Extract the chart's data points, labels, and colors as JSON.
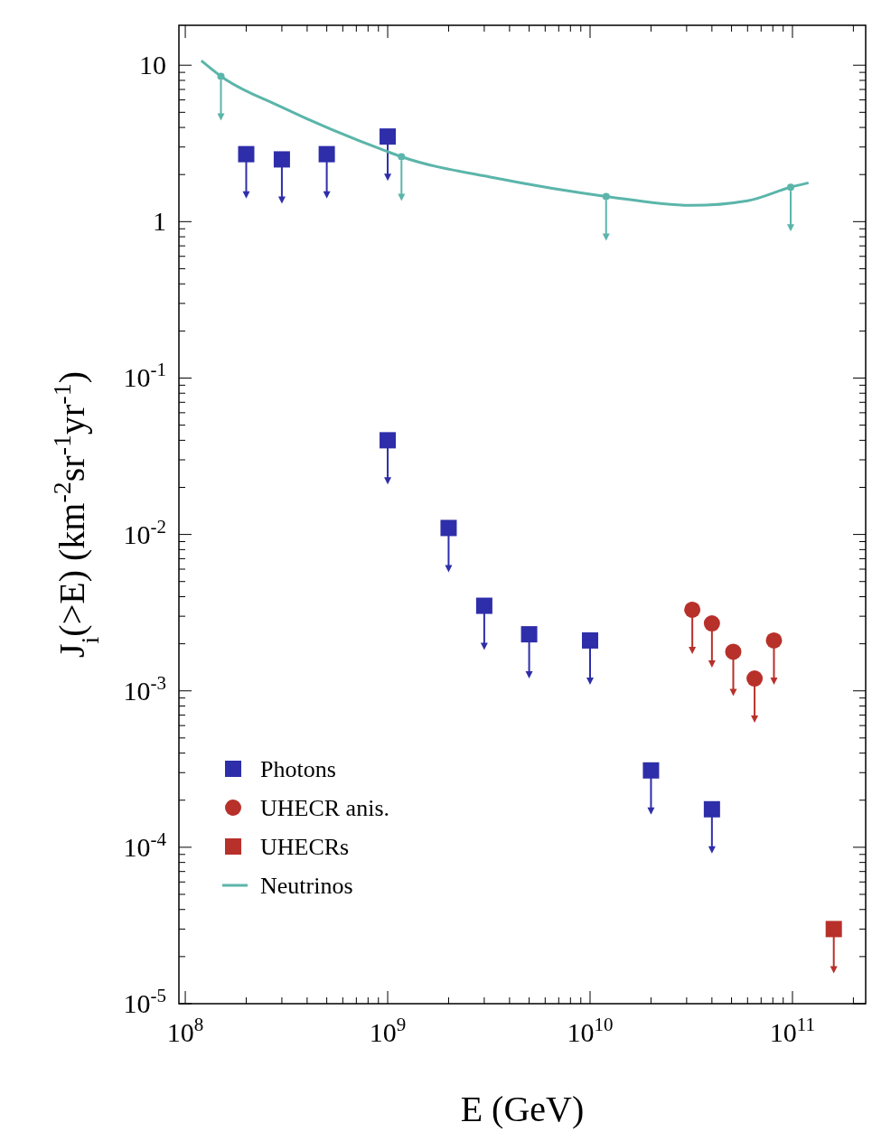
{
  "chart_data": {
    "type": "scatter",
    "xlabel": "E (GeV)",
    "ylabel": "J$_{i}$(>E) (km$^{-2}$sr$^{-1}$yr$^{-1}$)",
    "log": "xy",
    "legend": "bottom left",
    "grid": false,
    "xlim": [
      93000000,
      230000000000
    ],
    "ylim": [
      1e-05,
      18
    ],
    "xticks": [
      {
        "value": 100000000,
        "label": "10$^{8}$"
      },
      {
        "value": 1000000000,
        "label": "10$^{9}$"
      },
      {
        "value": 10000000000,
        "label": "10$^{10}$"
      },
      {
        "value": 100000000000,
        "label": "10$^{11}$"
      }
    ],
    "yticks": [
      {
        "value": 1e-05,
        "label": "10$^{-5}$"
      },
      {
        "value": 0.0001,
        "label": "10$^{-4}$"
      },
      {
        "value": 0.001,
        "label": "10$^{-3}$"
      },
      {
        "value": 0.01,
        "label": "10$^{-2}$"
      },
      {
        "value": 0.1,
        "label": "10$^{-1}$"
      },
      1,
      10
    ],
    "series": [
      {
        "name": "Photons",
        "color": "#2e2eaa",
        "marker": "square",
        "x": [
          200000000,
          300000000,
          500000000,
          1000000000,
          1000000000,
          2000000000,
          3000000000,
          5000000000,
          10000000000,
          20000000000,
          40000000000
        ],
        "values": [
          2.7,
          2.5,
          2.7,
          3.5,
          0.04,
          0.011,
          0.0035,
          0.0023,
          0.0021,
          0.00031,
          0.000175
        ]
      },
      {
        "name": "UHECR anis.",
        "color": "#b8302a",
        "marker": "circle",
        "x": [
          32000000000,
          40000000000,
          51000000000,
          65000000000,
          81000000000
        ],
        "values": [
          0.0033,
          0.0027,
          0.00178,
          0.0012,
          0.0021
        ]
      },
      {
        "name": "UHECRs",
        "color": "#b8302a",
        "marker": "square",
        "x": [
          160000000000
        ],
        "values": [
          3e-05
        ]
      },
      {
        "name": "Neutrinos",
        "type": "line",
        "color": "#5bb5aa",
        "x": [
          120000000,
          150000000,
          290000000,
          1000000000,
          1170000000,
          3400000000,
          12000000000,
          32000000000,
          60000000000,
          98000000000,
          120000000000
        ],
        "values": [
          10.7,
          8.5,
          5.5,
          2.8,
          2.6,
          1.9,
          1.45,
          1.27,
          1.36,
          1.66,
          1.77
        ]
      },
      {
        "type": "scatter",
        "color": "#5bb5aa",
        "marker": "circle",
        "x": [
          150000000,
          1170000000,
          12000000000,
          98000000000
        ],
        "values": [
          8.5,
          2.6,
          1.45,
          1.66
        ]
      }
    ]
  }
}
